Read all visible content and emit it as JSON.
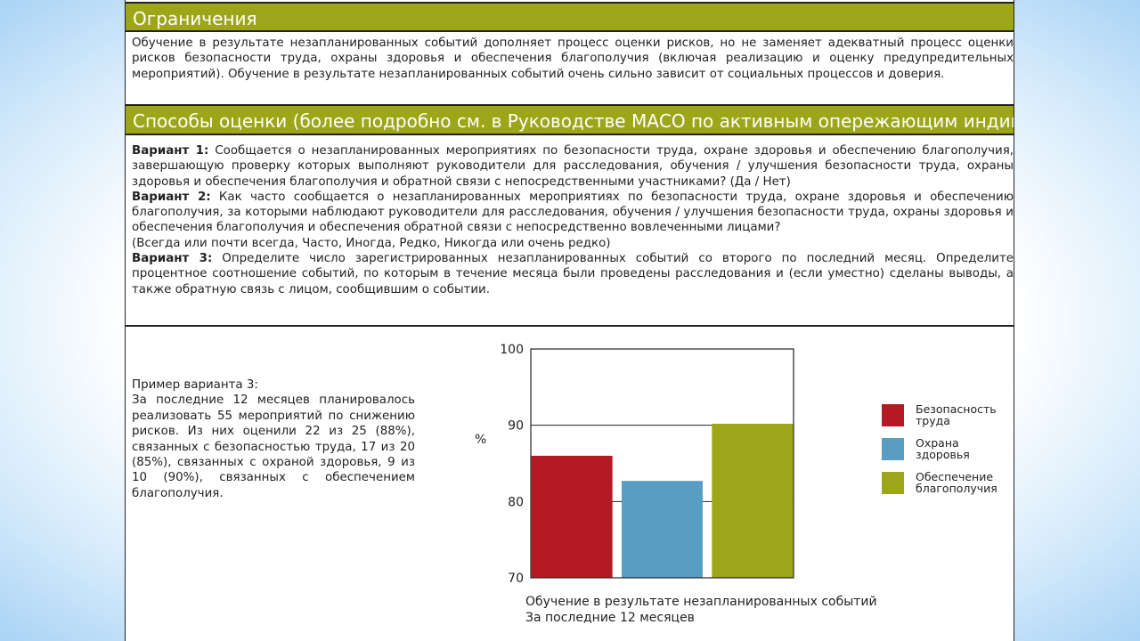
{
  "sections": {
    "limitations": {
      "title": "Ограничения",
      "text": "Обучение в результате незапланированных событий дополняет процесс оценки рисков, но не заменяет адекватный процесс оценки рисков безопасности труда, охраны здоровья и обеспечения благополучия (включая реализацию и оценку предупредительных мероприятий). Обучение в результате незапланированных событий очень сильно зависит от социальных процессов и доверия."
    },
    "methods": {
      "title": "Способы оценки (более подробно см. в Руководстве МАСО по активным опережающим индикаторам)",
      "v1_label": "Вариант 1:",
      "v1_text": " Сообщается о незапланированных мероприятиях по безопасности труда, охране здоровья и обеспечению благополучия, завершающую проверку которых выполняют руководители для расследования, обучения / улучшения безопасности труда, охраны здоровья и обеспечения благополучия и обратной связи с непосредственными участниками? (Да / Нет)",
      "v2_label": "Вариант 2:",
      "v2_text": " Как часто сообщается о незапланированных мероприятиях по безопасности труда, охране здоровья и обеспечению благополучия, за которыми наблюдают руководители для расследования, обучения / улучшения безопасности труда, охраны здоровья и обеспечения благополучия и обеспечения обратной связи с непосредственно вовлеченными лицами?",
      "v2_options": "(Всегда или почти всегда, Часто, Иногда, Редко, Никогда или очень редко)",
      "v3_label": "Вариант 3:",
      "v3_text": " Определите число зарегистрированных незапланированных событий со второго по последний месяц. Определите процентное соотношение событий, по которым в течение месяца были проведены расследования и (если уместно) сделаны выводы, а также обратную связь с лицом, сообщившим о событии."
    },
    "example": {
      "title": "Пример варианта 3:",
      "text": "За последние 12 месяцев планировалось реализовать 55 мероприятий по снижению рисков. Из них оценили 22 из 25 (88%), связанных с безопасностью труда, 17 из 20 (85%), связанных с охраной здоровья, 9 из 10 (90%), связанных с обеспечением благополучия."
    }
  },
  "colors": {
    "accent_bar": "#9da518",
    "safety": "#b51a24",
    "health": "#5a9dc3",
    "wellbeing": "#9da518"
  },
  "chart_data": {
    "type": "bar",
    "categories": [
      "Безопасность труда",
      "Охрана здоровья",
      "Обеспечение благополучия"
    ],
    "series": [
      {
        "name": "Безопасность труда",
        "values": [
          86,
          null,
          null
        ]
      },
      {
        "name": "Охрана здоровья",
        "values": [
          null,
          82.7,
          null
        ]
      },
      {
        "name": "Обеспечение благополучия",
        "values": [
          null,
          null,
          90.2
        ]
      }
    ],
    "values": [
      86,
      82.7,
      90.2
    ],
    "ylim": [
      70,
      100
    ],
    "yticks": [
      "70",
      "80",
      "90",
      "100"
    ],
    "ylabel": "%",
    "legend": [
      {
        "line1": "Безопасность",
        "line2": "труда",
        "color": "#b51a24"
      },
      {
        "line1": "Охрана",
        "line2": "здоровья",
        "color": "#5a9dc3"
      },
      {
        "line1": "Обеспечение",
        "line2": "благополучия",
        "color": "#9da518"
      }
    ],
    "legend_position": "right",
    "grid": true,
    "xlabel_line1": "Обучение в результате незапланированных событий",
    "xlabel_line2": "За последние 12 месяцев"
  }
}
